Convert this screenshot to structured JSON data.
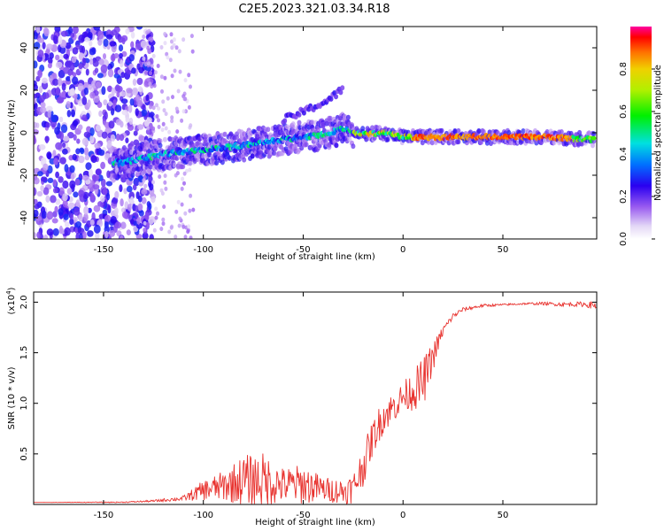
{
  "title": "C2E5.2023.321.03.34.R18",
  "chart_data": [
    {
      "type": "heatmap",
      "xlabel": "Height of straight line (km)",
      "ylabel": "Frequency (Hz)",
      "xlim": [
        -185,
        97
      ],
      "ylim": [
        -50,
        50
      ],
      "x_ticks": [
        -150,
        -100,
        -50,
        0,
        50
      ],
      "y_ticks": [
        -40,
        -20,
        0,
        20,
        40
      ],
      "colorbar": {
        "label": "Normalized spectral amplitude",
        "range": [
          0,
          1
        ],
        "ticks": [
          0.0,
          0.2,
          0.4,
          0.6,
          0.8
        ]
      },
      "ridge": {
        "description_points_x": [
          -140,
          -120,
          -100,
          -80,
          -60,
          -40,
          -30,
          -20,
          -10,
          0,
          10,
          30,
          50,
          70,
          90,
          97
        ],
        "description_points_y": [
          -14,
          -10,
          -8,
          -6,
          -3,
          -1,
          2,
          -1,
          0,
          -2,
          -2,
          -2,
          -2,
          -2,
          -3,
          -3
        ]
      },
      "secondary_branch": {
        "x": [
          -60,
          -50,
          -45,
          -40,
          -35,
          -30
        ],
        "y": [
          6,
          10,
          12,
          14,
          17,
          21
        ]
      }
    },
    {
      "type": "line",
      "xlabel": "Height of straight line (km)",
      "ylabel": "SNR (10 * v/v)",
      "y_multiplier": "(x10",
      "y_multiplier_exp": "4",
      "xlim": [
        -185,
        97
      ],
      "ylim": [
        0,
        2.1
      ],
      "x_ticks": [
        -150,
        -100,
        -50,
        0,
        50
      ],
      "y_ticks": [
        0.5,
        1.0,
        1.5,
        2.0
      ],
      "y_tick_labels": [
        "0.5",
        "1.0",
        "1.5",
        "2.0"
      ],
      "color": "#e8322e",
      "envelope": {
        "x": [
          -185,
          -140,
          -125,
          -110,
          -100,
          -90,
          -80,
          -70,
          -60,
          -50,
          -40,
          -30,
          -25,
          -20,
          -15,
          -10,
          -5,
          0,
          5,
          10,
          15,
          20,
          25,
          30,
          40,
          50,
          60,
          70,
          80,
          90,
          97
        ],
        "base": [
          0.02,
          0.02,
          0.03,
          0.05,
          0.1,
          0.12,
          0.14,
          0.13,
          0.12,
          0.12,
          0.1,
          0.08,
          0.1,
          0.3,
          0.6,
          0.8,
          0.9,
          1.0,
          1.05,
          1.1,
          1.4,
          1.7,
          1.85,
          1.92,
          1.96,
          1.97,
          1.98,
          1.98,
          1.97,
          1.97,
          1.95
        ],
        "amp": [
          0.0,
          0.01,
          0.02,
          0.05,
          0.2,
          0.3,
          0.5,
          0.55,
          0.35,
          0.4,
          0.25,
          0.25,
          0.3,
          0.4,
          0.35,
          0.35,
          0.3,
          0.3,
          0.4,
          0.5,
          0.3,
          0.1,
          0.06,
          0.04,
          0.03,
          0.02,
          0.02,
          0.03,
          0.04,
          0.05,
          0.08
        ]
      }
    }
  ]
}
